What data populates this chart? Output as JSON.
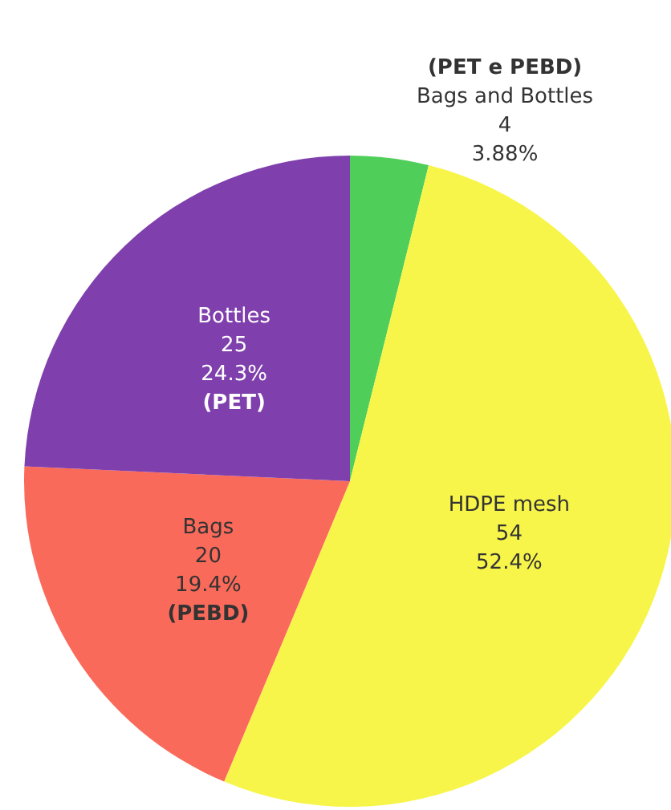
{
  "chart_data": {
    "type": "pie",
    "categories": [
      "Bags and Bottles",
      "HDPE mesh",
      "Bags",
      "Bottles"
    ],
    "values": [
      4,
      54,
      20,
      25
    ],
    "data_labels": true,
    "colors": [
      "#4fce5a",
      "#f7f54a",
      "#fa6a5a",
      "#7f3fad"
    ],
    "annotations": [
      {
        "text": "3.88%",
        "x": "Bags and Bottles"
      },
      {
        "text": "52.4%",
        "x": "HDPE mesh"
      },
      {
        "text": "19.4%",
        "x": "Bags"
      },
      {
        "text": "24.3%",
        "x": "Bottles"
      },
      {
        "text": "(PET e PEBD)",
        "x": "Bags and Bottles"
      },
      {
        "text": "(PET)",
        "x": "Bottles"
      },
      {
        "text": "(PEBD)",
        "x": "Bags"
      }
    ],
    "legend": false
  }
}
